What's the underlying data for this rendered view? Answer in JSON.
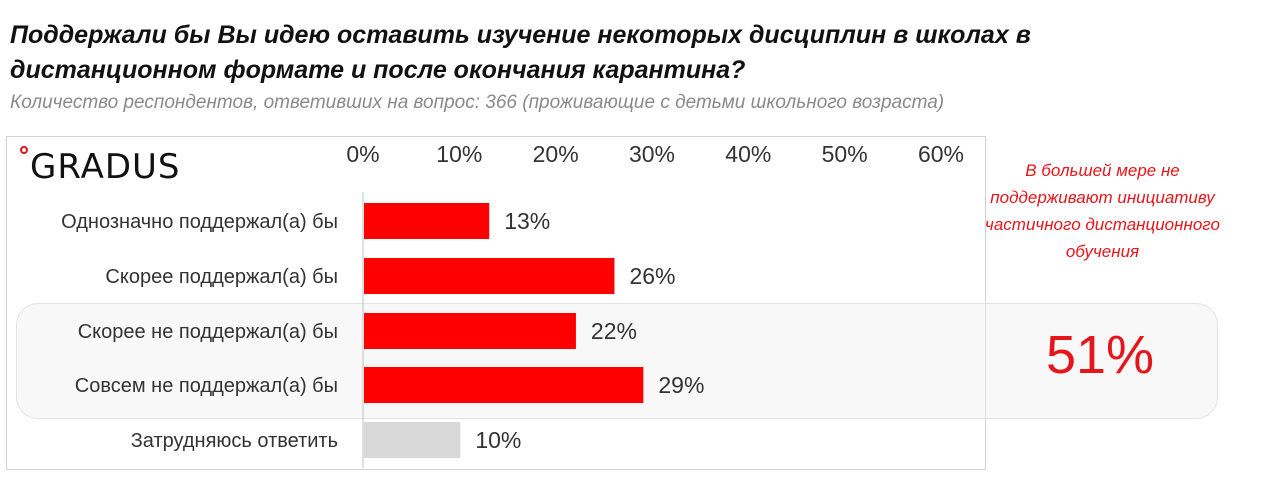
{
  "header": {
    "title": "Поддержали бы Вы идею оставить изучение некоторых дисциплин в школах в дистанционном формате и после окончания карантина?",
    "subtitle": "Количество респондентов, ответивших на вопрос: 366 (проживающие с детьми школьного возраста)"
  },
  "logo": {
    "text": "GRADUS"
  },
  "annotation": {
    "text": "В большей мере не поддерживают инициативу частичного дистанционного обучения",
    "value": "51%"
  },
  "colors": {
    "bar_main": "#ff0000",
    "bar_neutral": "#d9d9d9",
    "accent": "#e4161b",
    "axis_text": "#333333"
  },
  "chart_data": {
    "type": "bar",
    "orientation": "horizontal",
    "title": "",
    "xlabel": "",
    "ylabel": "",
    "xlim": [
      0,
      60
    ],
    "x_ticks": [
      "0%",
      "10%",
      "20%",
      "30%",
      "40%",
      "50%",
      "60%"
    ],
    "x_axis_position": "top",
    "grid": false,
    "legend": "none",
    "categories": [
      "Однозначно поддержал(а) бы",
      "Скорее поддержал(а) бы",
      "Скорее не поддержал(а) бы",
      "Совсем не поддержал(а) бы",
      "Затрудняюсь ответить"
    ],
    "values": [
      13,
      26,
      22,
      29,
      10
    ],
    "value_labels": [
      "13%",
      "26%",
      "22%",
      "29%",
      "10%"
    ],
    "bar_colors": [
      "#ff0000",
      "#ff0000",
      "#ff0000",
      "#ff0000",
      "#d9d9d9"
    ]
  }
}
